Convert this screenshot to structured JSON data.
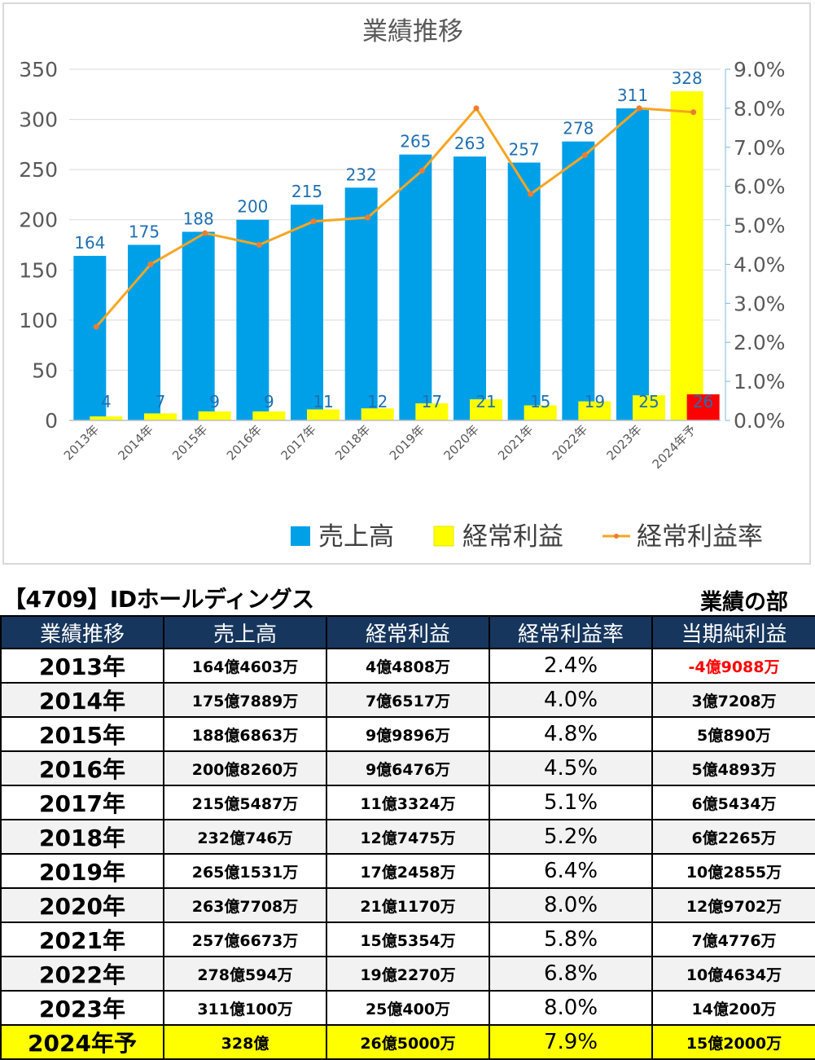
{
  "chart_data": {
    "type": "bar",
    "title": "業績推移",
    "categories": [
      "2013年",
      "2014年",
      "2015年",
      "2016年",
      "2017年",
      "2018年",
      "2019年",
      "2020年",
      "2021年",
      "2022年",
      "2023年",
      "2024年予"
    ],
    "series": [
      {
        "name": "売上高",
        "type": "bar",
        "axis": "left",
        "values": [
          164,
          175,
          188,
          200,
          215,
          232,
          265,
          263,
          257,
          278,
          311,
          328
        ],
        "color": "#00a0e9",
        "forecast_color": "#ffff00"
      },
      {
        "name": "経常利益",
        "type": "bar",
        "axis": "left",
        "values": [
          4,
          7,
          9,
          9,
          11,
          12,
          17,
          21,
          15,
          19,
          25,
          26
        ],
        "color": "#ffff00",
        "forecast_color": "#ff0000"
      },
      {
        "name": "経常利益率",
        "type": "line",
        "axis": "right",
        "values": [
          2.4,
          4.0,
          4.8,
          4.5,
          5.1,
          5.2,
          6.4,
          8.0,
          5.8,
          6.8,
          8.0,
          7.9
        ],
        "color": "#f5a623",
        "marker_color": "#ed7d31"
      }
    ],
    "y_left": {
      "ylim": [
        0,
        350
      ],
      "ticks": [
        0,
        50,
        100,
        150,
        200,
        250,
        300,
        350
      ]
    },
    "y_right": {
      "ylim": [
        0,
        9.0
      ],
      "ticks": [
        "0.0%",
        "1.0%",
        "2.0%",
        "3.0%",
        "4.0%",
        "5.0%",
        "6.0%",
        "7.0%",
        "8.0%",
        "9.0%"
      ]
    },
    "grid": true,
    "legend": "bottom"
  },
  "header": {
    "company": "【4709】IDホールディングス",
    "section": "業績の部"
  },
  "table": {
    "columns": [
      "業績推移",
      "売上高",
      "経常利益",
      "経常利益率",
      "当期純利益"
    ],
    "rows": [
      {
        "year": "2013年",
        "sales": "164億4603万",
        "ordinary": "4億4808万",
        "rate": "2.4%",
        "net": "-4億9088万",
        "net_negative": true
      },
      {
        "year": "2014年",
        "sales": "175億7889万",
        "ordinary": "7億6517万",
        "rate": "4.0%",
        "net": "3億7208万"
      },
      {
        "year": "2015年",
        "sales": "188億6863万",
        "ordinary": "9億9896万",
        "rate": "4.8%",
        "net": "5億890万"
      },
      {
        "year": "2016年",
        "sales": "200億8260万",
        "ordinary": "9億6476万",
        "rate": "4.5%",
        "net": "5億4893万"
      },
      {
        "year": "2017年",
        "sales": "215億5487万",
        "ordinary": "11億3324万",
        "rate": "5.1%",
        "net": "6億5434万"
      },
      {
        "year": "2018年",
        "sales": "232億746万",
        "ordinary": "12億7475万",
        "rate": "5.2%",
        "net": "6億2265万"
      },
      {
        "year": "2019年",
        "sales": "265億1531万",
        "ordinary": "17億2458万",
        "rate": "6.4%",
        "net": "10億2855万"
      },
      {
        "year": "2020年",
        "sales": "263億7708万",
        "ordinary": "21億1170万",
        "rate": "8.0%",
        "net": "12億9702万"
      },
      {
        "year": "2021年",
        "sales": "257億6673万",
        "ordinary": "15億5354万",
        "rate": "5.8%",
        "net": "7億4776万"
      },
      {
        "year": "2022年",
        "sales": "278億594万",
        "ordinary": "19億2270万",
        "rate": "6.8%",
        "net": "10億4634万"
      },
      {
        "year": "2023年",
        "sales": "311億100万",
        "ordinary": "25億400万",
        "rate": "8.0%",
        "net": "14億200万"
      },
      {
        "year": "2024年予",
        "sales": "328億",
        "ordinary": "26億5000万",
        "rate": "7.9%",
        "net": "15億2000万",
        "forecast": true
      }
    ]
  }
}
